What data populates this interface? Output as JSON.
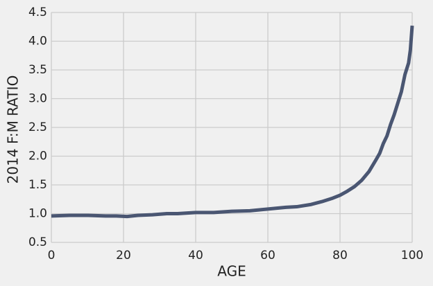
{
  "chart_data": {
    "type": "line",
    "xlabel": "AGE",
    "ylabel": "2014 F:M RATIO",
    "x": [
      0,
      5,
      10,
      15,
      18,
      21,
      24,
      28,
      32,
      35,
      40,
      45,
      50,
      55,
      60,
      65,
      68,
      72,
      75,
      78,
      80,
      82,
      84,
      86,
      88,
      90,
      91,
      92,
      93,
      94,
      95,
      96,
      97,
      98,
      99,
      99.5,
      100
    ],
    "series": [
      {
        "name": "2014 F:M RATIO",
        "color": "#4a5672",
        "values": [
          0.96,
          0.97,
          0.97,
          0.96,
          0.96,
          0.95,
          0.97,
          0.98,
          1.0,
          1.0,
          1.02,
          1.02,
          1.04,
          1.05,
          1.08,
          1.11,
          1.12,
          1.16,
          1.21,
          1.27,
          1.32,
          1.39,
          1.47,
          1.58,
          1.73,
          1.94,
          2.05,
          2.22,
          2.35,
          2.55,
          2.72,
          2.92,
          3.12,
          3.42,
          3.62,
          3.85,
          4.27
        ]
      }
    ],
    "xlim": [
      0,
      100
    ],
    "xticks": [
      0,
      20,
      40,
      60,
      80,
      100
    ],
    "ylim": [
      0.5,
      4.5
    ],
    "yticks": [
      0.5,
      {
        "value": 1,
        "label": "1.0"
      },
      1.5,
      {
        "value": 2,
        "label": "2.0"
      },
      2.5,
      {
        "value": 3,
        "label": "3.0"
      },
      3.5,
      {
        "value": 4,
        "label": "4.0"
      },
      4.5
    ],
    "grid": true
  }
}
